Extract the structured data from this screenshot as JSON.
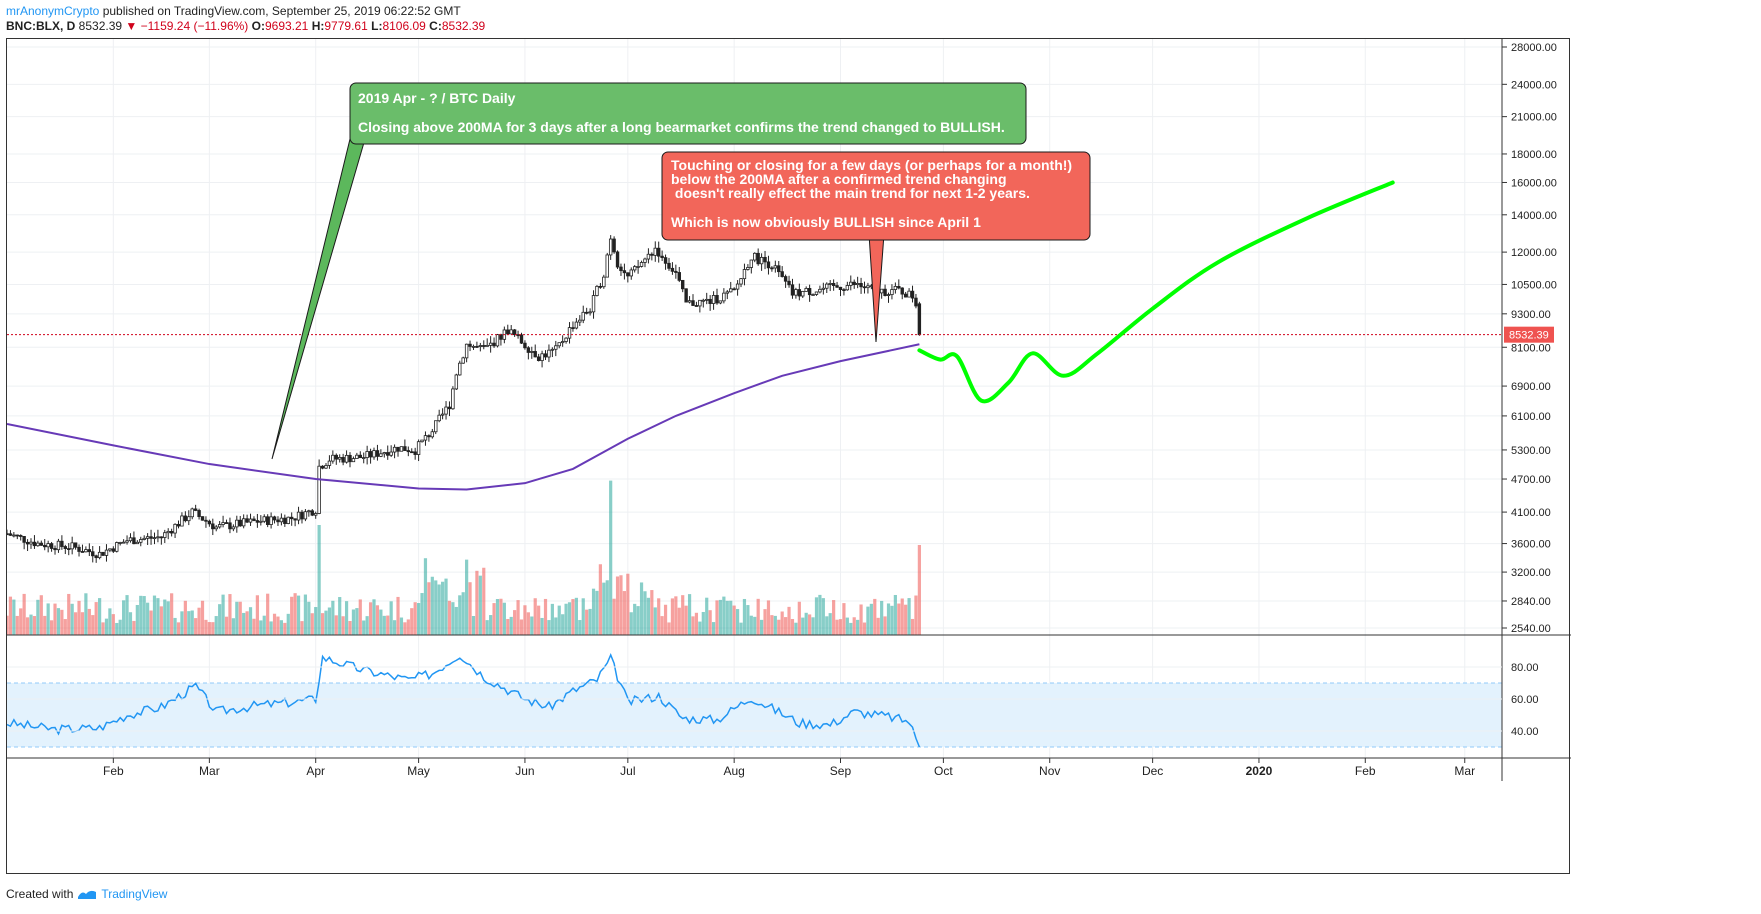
{
  "header": {
    "author": "mrAnonymCrypto",
    "published_text": "published on TradingView.com, September 25, 2019 06:22:52 GMT",
    "symbol": "BNC:BLX, D",
    "price": "8532.39",
    "change": "−1159.24 (−11.96%)",
    "open_label": "O:",
    "open": "9693.21",
    "high_label": "H:",
    "high": "9779.61",
    "low_label": "L:",
    "low": "8106.09",
    "close_label": "C:",
    "close": "8532.39"
  },
  "footer": {
    "created_with": "Created with",
    "brand": "TradingView"
  },
  "annotations": {
    "green": {
      "line1": "2019 Apr - ? / BTC Daily",
      "line2": "Closing above 200MA for 3 days after a long bearmarket confirms the trend changed to BULLISH."
    },
    "red": {
      "line1": "Touching or closing for a few days (or perhaps for a month!)",
      "line2": "below the 200MA after a confirmed trend changing",
      "line3": " doesn't really effect the main trend for next 1-2 years.",
      "line4": "Which is now obviously BULLISH since April 1"
    }
  },
  "colors": {
    "up": "#26a69a",
    "down": "#ef5350",
    "ma": "#673ab7",
    "forecast": "#00ff00",
    "rsi": "#2196f3",
    "green_box": "#6abd6a",
    "red_box": "#f2665a"
  },
  "chart_data": [
    {
      "type": "candlestick",
      "symbol": "BNC:BLX",
      "interval": "D",
      "price_scale": "log",
      "y_ticks": [
        2540,
        2840,
        3200,
        3600,
        4100,
        4700,
        5300,
        6100,
        6900,
        8100,
        9300,
        10500,
        12000,
        14000,
        16000,
        18000,
        21000,
        24000,
        28000
      ],
      "x_ticks": [
        "Feb",
        "Mar",
        "Apr",
        "May",
        "Jun",
        "Jul",
        "Aug",
        "Sep",
        "Oct",
        "Nov",
        "Dec",
        "2020",
        "Feb",
        "Mar"
      ],
      "last_price": 8532.39,
      "price_path": [
        [
          "2019-01-01",
          3750
        ],
        [
          "2019-01-10",
          3600
        ],
        [
          "2019-01-20",
          3550
        ],
        [
          "2019-01-28",
          3450
        ],
        [
          "2019-02-05",
          3650
        ],
        [
          "2019-02-15",
          3700
        ],
        [
          "2019-02-24",
          4100
        ],
        [
          "2019-03-03",
          3850
        ],
        [
          "2019-03-15",
          3950
        ],
        [
          "2019-03-25",
          4000
        ],
        [
          "2019-04-01",
          4150
        ],
        [
          "2019-04-02",
          4950
        ],
        [
          "2019-04-05",
          5100
        ],
        [
          "2019-04-15",
          5150
        ],
        [
          "2019-04-25",
          5350
        ],
        [
          "2019-04-30",
          5300
        ],
        [
          "2019-05-05",
          5750
        ],
        [
          "2019-05-10",
          6400
        ],
        [
          "2019-05-12",
          7300
        ],
        [
          "2019-05-15",
          8200
        ],
        [
          "2019-05-20",
          8000
        ],
        [
          "2019-05-27",
          8700
        ],
        [
          "2019-06-05",
          7800
        ],
        [
          "2019-06-10",
          8000
        ],
        [
          "2019-06-15",
          8900
        ],
        [
          "2019-06-20",
          9500
        ],
        [
          "2019-06-24",
          11000
        ],
        [
          "2019-06-26",
          12800
        ],
        [
          "2019-06-28",
          11500
        ],
        [
          "2019-07-01",
          10800
        ],
        [
          "2019-07-09",
          12200
        ],
        [
          "2019-07-15",
          11000
        ],
        [
          "2019-07-18",
          9700
        ],
        [
          "2019-07-25",
          9800
        ],
        [
          "2019-08-01",
          10200
        ],
        [
          "2019-08-06",
          11800
        ],
        [
          "2019-08-12",
          11400
        ],
        [
          "2019-08-18",
          10100
        ],
        [
          "2019-08-27",
          10300
        ],
        [
          "2019-09-05",
          10500
        ],
        [
          "2019-09-12",
          10200
        ],
        [
          "2019-09-18",
          10250
        ],
        [
          "2019-09-22",
          10000
        ],
        [
          "2019-09-23",
          9700
        ],
        [
          "2019-09-24",
          8532
        ]
      ],
      "ma_200": [
        [
          "2019-01-01",
          5900
        ],
        [
          "2019-02-01",
          5400
        ],
        [
          "2019-03-01",
          5000
        ],
        [
          "2019-04-01",
          4700
        ],
        [
          "2019-05-01",
          4520
        ],
        [
          "2019-05-15",
          4500
        ],
        [
          "2019-06-01",
          4620
        ],
        [
          "2019-06-15",
          4900
        ],
        [
          "2019-07-01",
          5550
        ],
        [
          "2019-07-15",
          6100
        ],
        [
          "2019-08-01",
          6700
        ],
        [
          "2019-08-15",
          7200
        ],
        [
          "2019-09-01",
          7650
        ],
        [
          "2019-09-24",
          8200
        ]
      ],
      "forecast_path": [
        [
          "2019-09-24",
          8000
        ],
        [
          "2019-09-30",
          7700
        ],
        [
          "2019-10-05",
          7800
        ],
        [
          "2019-10-12",
          6500
        ],
        [
          "2019-10-20",
          7000
        ],
        [
          "2019-10-27",
          7900
        ],
        [
          "2019-11-05",
          7200
        ],
        [
          "2019-11-15",
          7900
        ],
        [
          "2019-12-01",
          9500
        ],
        [
          "2019-12-20",
          11500
        ],
        [
          "2020-01-15",
          13800
        ],
        [
          "2020-02-09",
          16000
        ]
      ]
    },
    {
      "type": "area",
      "name": "RSI",
      "y_ticks": [
        40,
        60,
        80
      ],
      "band": [
        30,
        70
      ],
      "values": [
        [
          "2019-01-01",
          45
        ],
        [
          "2019-01-15",
          41
        ],
        [
          "2019-01-28",
          42
        ],
        [
          "2019-02-05",
          50
        ],
        [
          "2019-02-15",
          55
        ],
        [
          "2019-02-25",
          68
        ],
        [
          "2019-03-03",
          52
        ],
        [
          "2019-03-15",
          56
        ],
        [
          "2019-03-25",
          58
        ],
        [
          "2019-04-01",
          60
        ],
        [
          "2019-04-03",
          86
        ],
        [
          "2019-04-15",
          78
        ],
        [
          "2019-04-28",
          72
        ],
        [
          "2019-05-05",
          76
        ],
        [
          "2019-05-13",
          88
        ],
        [
          "2019-05-20",
          74
        ],
        [
          "2019-06-01",
          60
        ],
        [
          "2019-06-08",
          55
        ],
        [
          "2019-06-15",
          65
        ],
        [
          "2019-06-22",
          72
        ],
        [
          "2019-06-26",
          85
        ],
        [
          "2019-07-01",
          58
        ],
        [
          "2019-07-10",
          62
        ],
        [
          "2019-07-17",
          48
        ],
        [
          "2019-07-27",
          47
        ],
        [
          "2019-08-06",
          61
        ],
        [
          "2019-08-14",
          52
        ],
        [
          "2019-08-20",
          45
        ],
        [
          "2019-08-29",
          44
        ],
        [
          "2019-09-05",
          52
        ],
        [
          "2019-09-15",
          49
        ],
        [
          "2019-09-21",
          46
        ],
        [
          "2019-09-24",
          30
        ]
      ]
    }
  ]
}
